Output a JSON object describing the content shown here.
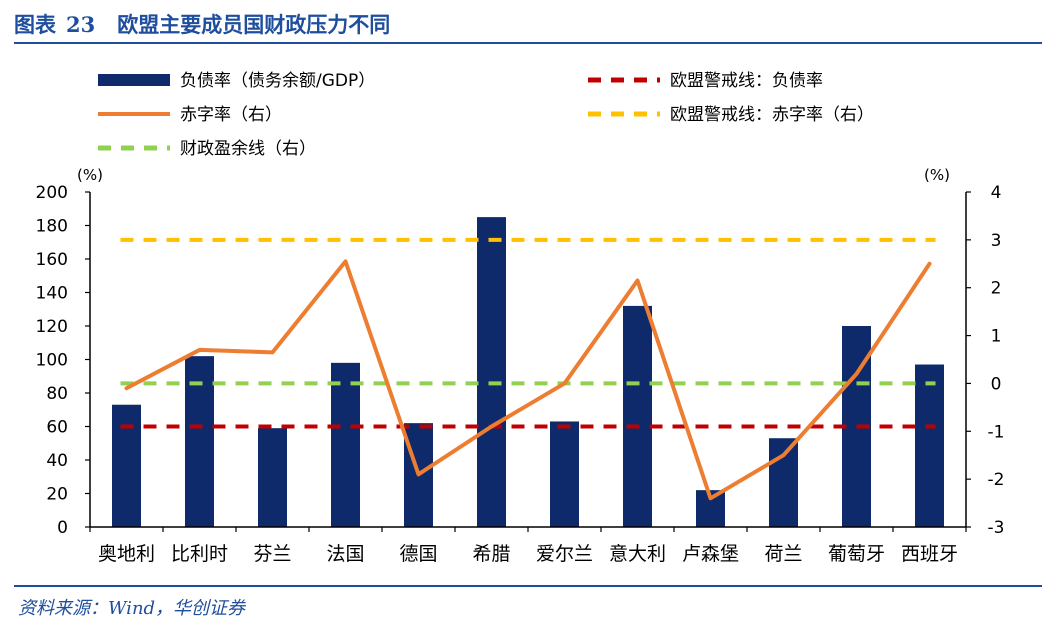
{
  "figure": {
    "label": "图表",
    "number": "23",
    "title": "欧盟主要成员国财政压力不同",
    "source": "资料来源：Wind，华创证券"
  },
  "colors": {
    "bar": "#0f2a6b",
    "deficit": "#ed7d31",
    "eu_debt_line": "#c00000",
    "eu_deficit_line": "#ffc000",
    "balance_line": "#92d050",
    "axis": "#000000",
    "title": "#1f4e9e"
  },
  "chart_data": {
    "type": "bar",
    "categories": [
      "奥地利",
      "比利时",
      "芬兰",
      "法国",
      "德国",
      "希腊",
      "爱尔兰",
      "意大利",
      "卢森堡",
      "荷兰",
      "葡萄牙",
      "西班牙"
    ],
    "series": [
      {
        "name": "负债率（债务余额/GDP）",
        "type": "bar",
        "axis": "left",
        "values": [
          73,
          102,
          59,
          98,
          62,
          185,
          63,
          132,
          22,
          53,
          120,
          97
        ]
      },
      {
        "name": "赤字率（右）",
        "type": "line",
        "axis": "right",
        "values": [
          -0.1,
          0.7,
          0.65,
          2.55,
          -1.9,
          -0.9,
          0.0,
          2.15,
          -2.4,
          -1.5,
          0.2,
          2.5
        ]
      }
    ],
    "reference_lines": [
      {
        "name": "欧盟警戒线：负债率",
        "axis": "left",
        "value": 60,
        "style": "dashed"
      },
      {
        "name": "欧盟警戒线：赤字率（右）",
        "axis": "right",
        "value": 3,
        "style": "dashed"
      },
      {
        "name": "财政盈余线（右）",
        "axis": "right",
        "value": 0,
        "style": "dashed"
      }
    ],
    "y_left": {
      "unit": "(%)",
      "ylim": [
        0,
        200
      ],
      "ticks": [
        0,
        20,
        40,
        60,
        80,
        100,
        120,
        140,
        160,
        180,
        200
      ]
    },
    "y_right": {
      "unit": "(%)",
      "ylim": [
        -3,
        4
      ],
      "ticks": [
        -3,
        -2,
        -1,
        0,
        1,
        2,
        3,
        4
      ]
    },
    "legend": {
      "placement": "top",
      "items": [
        {
          "key": "debt",
          "label": "负债率（债务余额/GDP）"
        },
        {
          "key": "eu_debt",
          "label": "欧盟警戒线：负债率"
        },
        {
          "key": "deficit",
          "label": "赤字率（右）"
        },
        {
          "key": "eu_deficit",
          "label": "欧盟警戒线：赤字率（右）"
        },
        {
          "key": "balance",
          "label": "财政盈余线（右）"
        }
      ]
    },
    "grid": false
  }
}
